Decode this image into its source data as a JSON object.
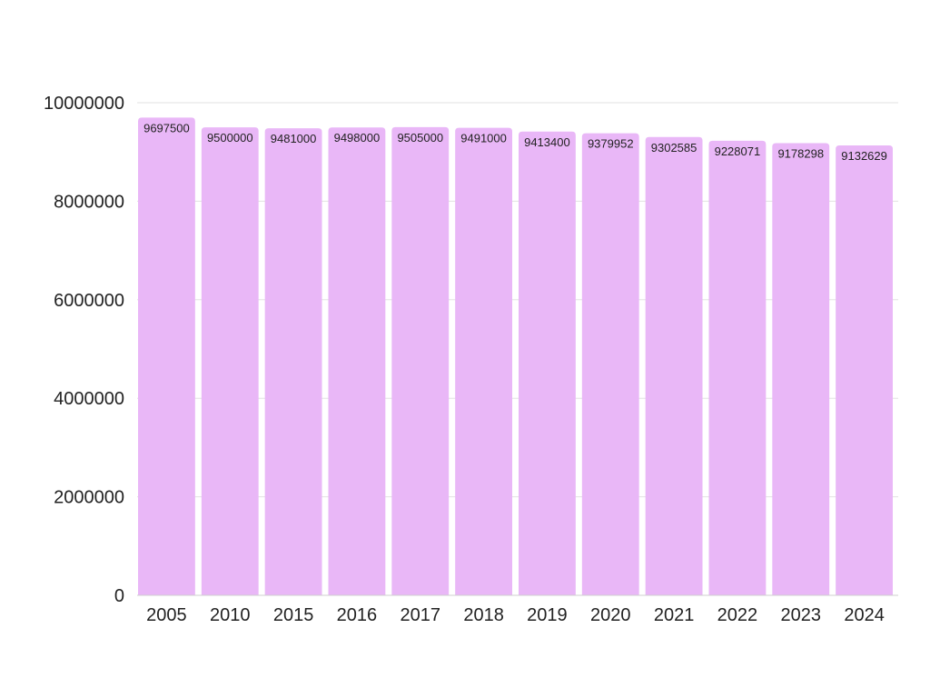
{
  "chart_data": {
    "type": "bar",
    "categories": [
      "2005",
      "2010",
      "2015",
      "2016",
      "2017",
      "2018",
      "2019",
      "2020",
      "2021",
      "2022",
      "2023",
      "2024"
    ],
    "values": [
      9697500,
      9500000,
      9481000,
      9498000,
      9505000,
      9491000,
      9413400,
      9379952,
      9302585,
      9228071,
      9178298,
      9132629
    ],
    "value_labels": [
      "9697500",
      "9500000",
      "9481000",
      "9498000",
      "9505000",
      "9491000",
      "9413400",
      "9379952",
      "9302585",
      "9228071",
      "9178298",
      "9132629"
    ],
    "ylim": [
      0,
      10000000
    ],
    "y_ticks": [
      0,
      2000000,
      4000000,
      6000000,
      8000000,
      10000000
    ],
    "y_tick_labels": [
      "0",
      "2000000",
      "4000000",
      "6000000",
      "8000000",
      "10000000"
    ],
    "grid": true,
    "bar_color": "#e9b7f7",
    "title": "",
    "xlabel": "",
    "ylabel": ""
  }
}
